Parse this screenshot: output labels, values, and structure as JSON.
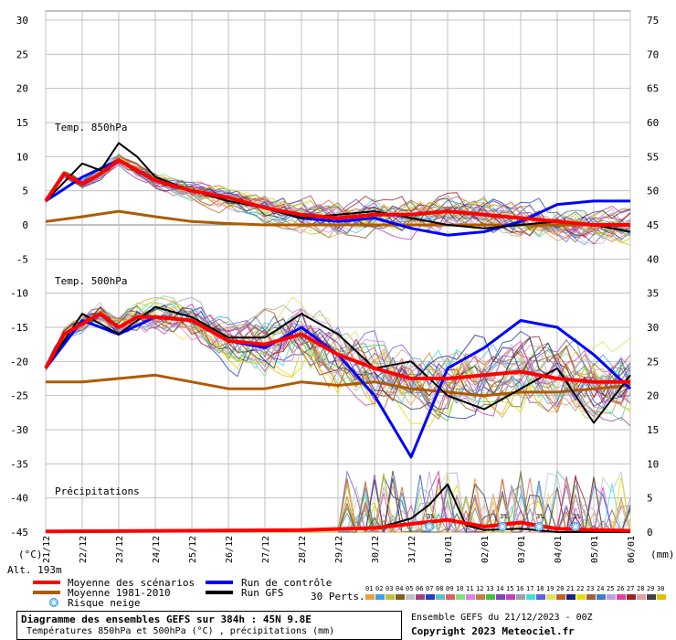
{
  "title_box": {
    "line1": "Diagramme des ensembles GEFS sur 384h : 45N 9.8E",
    "line2": "Températures 850hPa et 500hPa (°C) , précipitations (mm)"
  },
  "credits": {
    "run": "Ensemble GEFS du 21/12/2023 - 00Z",
    "copyright": "Copyright 2023 Meteociel.fr"
  },
  "altitude": "Alt. 193m",
  "left_unit": "(°C)",
  "right_unit": "(mm)",
  "legend": {
    "mean": "Moyenne des scénarios",
    "clim": "Moyenne 1981-2010",
    "snow": "Risque neige",
    "control": "Run de contrôle",
    "gfs": "Run GFS",
    "perts_label": "30 Perts.",
    "pert_numbers": [
      "01",
      "02",
      "03",
      "04",
      "05",
      "06",
      "07",
      "08",
      "09",
      "10",
      "11",
      "12",
      "13",
      "14",
      "15",
      "16",
      "17",
      "18",
      "19",
      "20",
      "21",
      "22",
      "23",
      "24",
      "25",
      "26",
      "27",
      "28",
      "29",
      "30"
    ],
    "pert_colors": [
      "#e8a040",
      "#40a0e0",
      "#c0c040",
      "#806020",
      "#c0c0c0",
      "#a04080",
      "#2040c0",
      "#60c0c0",
      "#e06060",
      "#80e080",
      "#e080e0",
      "#c08040",
      "#40c040",
      "#8040c0",
      "#c040c0",
      "#a0a0a0",
      "#40e0e0",
      "#6060e0",
      "#e0e060",
      "#c06020",
      "#202080",
      "#e0e000",
      "#a06040",
      "#4080c0",
      "#c0a0e0",
      "#e040a0",
      "#a02020",
      "#e0a0a0",
      "#404040",
      "#e0c000"
    ]
  },
  "section_labels": {
    "t850": "Temp. 850hPa",
    "t500": "Temp. 500hPa",
    "precip": "Précipitations"
  },
  "colors": {
    "mean": "#ff0000",
    "clim": "#b05a00",
    "control": "#0000ff",
    "gfs": "#000000",
    "grid": "#c0c0c0",
    "snow": "#40a0e0"
  },
  "chart_data": {
    "type": "line",
    "x_dates": [
      "21/12",
      "22/12",
      "23/12",
      "24/12",
      "25/12",
      "26/12",
      "27/12",
      "28/12",
      "29/12",
      "30/12",
      "31/12",
      "01/01",
      "02/01",
      "03/01",
      "04/01",
      "05/01",
      "06/01"
    ],
    "left_axis": {
      "min": -45,
      "max": 30,
      "step": 5,
      "unit": "°C"
    },
    "right_axis": {
      "min": 0,
      "max": 75,
      "step": 5,
      "unit": "mm",
      "zero_at_left": -45
    },
    "snow_risk_dates": [
      "31/12",
      "02/01",
      "03/01",
      "04/01"
    ],
    "series": [
      {
        "name": "Moyenne des scénarios",
        "level": "850hPa",
        "x": [
          0,
          0.5,
          1,
          1.5,
          2,
          2.5,
          3,
          4,
          5,
          6,
          7,
          8,
          9,
          10,
          11,
          12,
          13,
          14,
          15,
          16
        ],
        "values": [
          3.5,
          7.5,
          6,
          7.5,
          9.5,
          8,
          6.5,
          5,
          4,
          2.5,
          1.5,
          1,
          1.5,
          1.5,
          2,
          1.5,
          1,
          0.5,
          0,
          0
        ]
      },
      {
        "name": "Moyenne 1981-2010",
        "level": "850hPa",
        "x": [
          0,
          1,
          2,
          3,
          4,
          5,
          6,
          7,
          8,
          9,
          10,
          11,
          12,
          13,
          14,
          15,
          16
        ],
        "values": [
          0.5,
          1.2,
          2,
          1.2,
          0.5,
          0.2,
          0,
          0,
          0,
          0,
          0,
          0,
          0,
          0,
          0,
          0,
          0
        ]
      },
      {
        "name": "Run de contrôle",
        "level": "850hPa",
        "x": [
          0,
          1,
          2,
          3,
          4,
          5,
          6,
          7,
          8,
          9,
          10,
          11,
          12,
          13,
          14,
          15,
          16
        ],
        "values": [
          3.5,
          7,
          9.5,
          6.5,
          5,
          4,
          2.5,
          1,
          0.5,
          1,
          -0.5,
          -1.5,
          -1,
          0.5,
          3,
          3.5,
          3.5
        ]
      },
      {
        "name": "Run GFS",
        "level": "850hPa",
        "x": [
          0,
          1,
          1.5,
          2,
          2.5,
          3,
          4,
          5,
          6,
          7,
          8,
          9,
          10,
          11,
          12,
          13,
          14,
          15,
          16
        ],
        "values": [
          3.5,
          9,
          8,
          12,
          10,
          7,
          5,
          3.5,
          2.5,
          1,
          1.5,
          2,
          1,
          0,
          -0.5,
          0,
          0.5,
          0,
          -1
        ]
      },
      {
        "name": "Moyenne des scénarios",
        "level": "500hPa",
        "x": [
          0,
          0.5,
          1,
          1.5,
          2,
          2.5,
          3,
          4,
          5,
          6,
          7,
          8,
          9,
          10,
          11,
          12,
          13,
          14,
          15,
          16
        ],
        "values": [
          -21,
          -16,
          -14.5,
          -13,
          -15,
          -13.5,
          -13.5,
          -14,
          -17,
          -17.5,
          -16,
          -19,
          -21,
          -22.5,
          -22.5,
          -22,
          -21.5,
          -22.5,
          -23,
          -23
        ]
      },
      {
        "name": "Moyenne 1981-2010",
        "level": "500hPa",
        "x": [
          0,
          1,
          2,
          3,
          4,
          5,
          6,
          7,
          8,
          9,
          10,
          11,
          12,
          13,
          14,
          15,
          16
        ],
        "values": [
          -23,
          -23,
          -22.5,
          -22,
          -23,
          -24,
          -24,
          -23,
          -23.5,
          -23,
          -24,
          -24.5,
          -25,
          -24.5,
          -24.5,
          -24,
          -23.5
        ]
      },
      {
        "name": "Run de contrôle",
        "level": "500hPa",
        "x": [
          0,
          1,
          2,
          3,
          4,
          5,
          6,
          7,
          8,
          9,
          10,
          11,
          12,
          13,
          14,
          15,
          16
        ],
        "values": [
          -21,
          -14,
          -16,
          -13.5,
          -14,
          -17,
          -18,
          -15,
          -19,
          -25,
          -34,
          -21,
          -18,
          -14,
          -15,
          -19,
          -24
        ]
      },
      {
        "name": "Run GFS",
        "level": "500hPa",
        "x": [
          0,
          1,
          2,
          3,
          4,
          5,
          6,
          7,
          8,
          9,
          10,
          11,
          12,
          13,
          14,
          15,
          16
        ],
        "values": [
          -21,
          -13,
          -16,
          -12,
          -13.5,
          -16.5,
          -16.5,
          -13,
          -16,
          -21,
          -20,
          -25,
          -27,
          -24,
          -21,
          -29,
          -22
        ]
      },
      {
        "name": "Moyenne des scénarios",
        "level": "precip",
        "x": [
          0,
          7,
          9,
          10,
          11,
          12,
          13,
          14,
          15,
          16
        ],
        "values": [
          0.1,
          0.3,
          0.6,
          1.2,
          1.8,
          0.8,
          1.4,
          0.5,
          0.3,
          0.2
        ]
      },
      {
        "name": "Run GFS",
        "level": "precip",
        "x": [
          0,
          9,
          10,
          10.5,
          11,
          11.5,
          12,
          13,
          14,
          15,
          16
        ],
        "values": [
          0,
          0.5,
          2,
          4,
          7,
          1,
          0.3,
          0.5,
          0,
          0,
          0
        ]
      }
    ]
  }
}
